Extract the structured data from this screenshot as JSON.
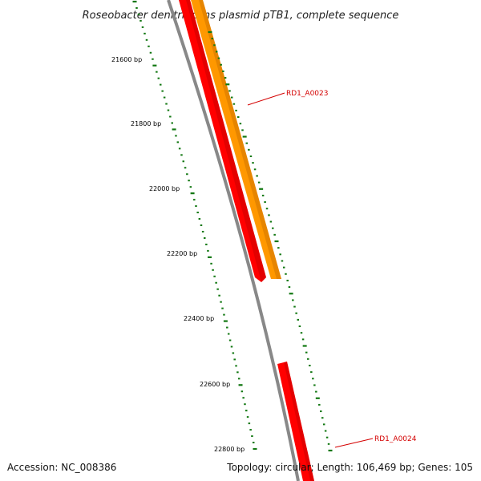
{
  "title": "Roseobacter denitrificans plasmid pTB1, complete sequence",
  "ticks": [
    "21600 bp",
    "21800 bp",
    "22000 bp",
    "22200 bp",
    "22400 bp",
    "22600 bp",
    "22800 bp"
  ],
  "genes": [
    {
      "name": "RD1_A0023",
      "color": "#ff9800"
    },
    {
      "name": "RD1_A0024",
      "color": "#ff0000"
    }
  ],
  "colors": {
    "backbone": "#888888",
    "forward_strand": "#ff9800",
    "reverse_strand": "#ff0000",
    "tick": "#117711",
    "label": "#d40000"
  },
  "footer": {
    "accession": "Accession: NC_008386",
    "summary": "Topology: circular; Length: 106,469 bp; Genes: 105"
  }
}
